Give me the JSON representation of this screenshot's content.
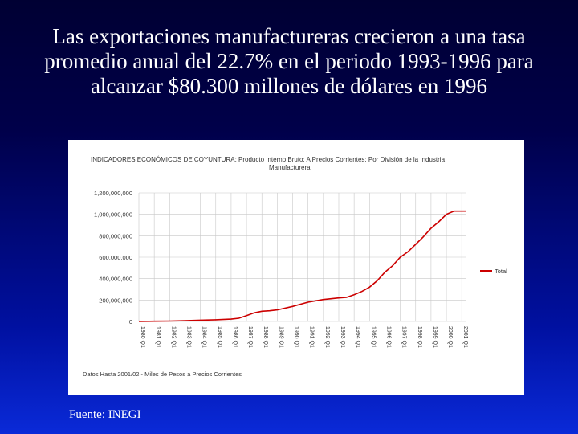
{
  "slide": {
    "title": "Las exportaciones manufactureras crecieron a una tasa promedio anual del 22.7% en el periodo 1993-1996 para alcanzar $80.300 millones de dólares en 1996",
    "source": "Fuente: INEGI"
  },
  "chart_data": {
    "type": "line",
    "title_line1": "INDICADORES ECONÓMICOS DE COYUNTURA: Producto Interno Bruto: A Precios Corrientes: Por División de la Industria",
    "title_line2": "Manufacturera",
    "footnote": "Datos Hasta 2001/02 - Miles de Pesos a Precios Corrientes",
    "ylim": [
      0,
      1200000000
    ],
    "y_ticks": [
      "1,200,000,000",
      "1,000,000,000",
      "800,000,000",
      "600,000,000",
      "400,000,000",
      "200,000,000",
      "0"
    ],
    "y_tick_values": [
      1200000000,
      1000000000,
      800000000,
      600000000,
      400000000,
      200000000,
      0
    ],
    "x_ticks": [
      "1980 Q1",
      "1981 Q1",
      "1982 Q1",
      "1983 Q1",
      "1984 Q1",
      "1985 Q1",
      "1986 Q1",
      "1987 Q1",
      "1988 Q1",
      "1989 Q1",
      "1990 Q1",
      "1991 Q1",
      "1992 Q1",
      "1993 Q1",
      "1994 Q1",
      "1995 Q1",
      "1996 Q1",
      "1997 Q1",
      "1998 Q1",
      "1999 Q1",
      "2000 Q1",
      "2001 Q1"
    ],
    "grid": true,
    "legend": "right",
    "series": [
      {
        "name": "Total",
        "color": "#cc0000",
        "x": [
          1980,
          1981,
          1982,
          1983,
          1984,
          1985,
          1986,
          1986.5,
          1987,
          1987.5,
          1988,
          1988.5,
          1989,
          1990,
          1991,
          1992,
          1993,
          1993.5,
          1994,
          1994.5,
          1995,
          1995.5,
          1996,
          1996.5,
          1997,
          1997.5,
          1998,
          1998.5,
          1999,
          1999.5,
          2000,
          2000.5,
          2001,
          2001.25
        ],
        "values": [
          0,
          2000000,
          4000000,
          7000000,
          12000000,
          16000000,
          22000000,
          30000000,
          55000000,
          80000000,
          95000000,
          100000000,
          108000000,
          140000000,
          180000000,
          205000000,
          220000000,
          225000000,
          250000000,
          280000000,
          320000000,
          380000000,
          460000000,
          520000000,
          600000000,
          650000000,
          720000000,
          790000000,
          870000000,
          930000000,
          1000000000,
          1030000000,
          1030000000,
          1030000000
        ]
      }
    ]
  }
}
